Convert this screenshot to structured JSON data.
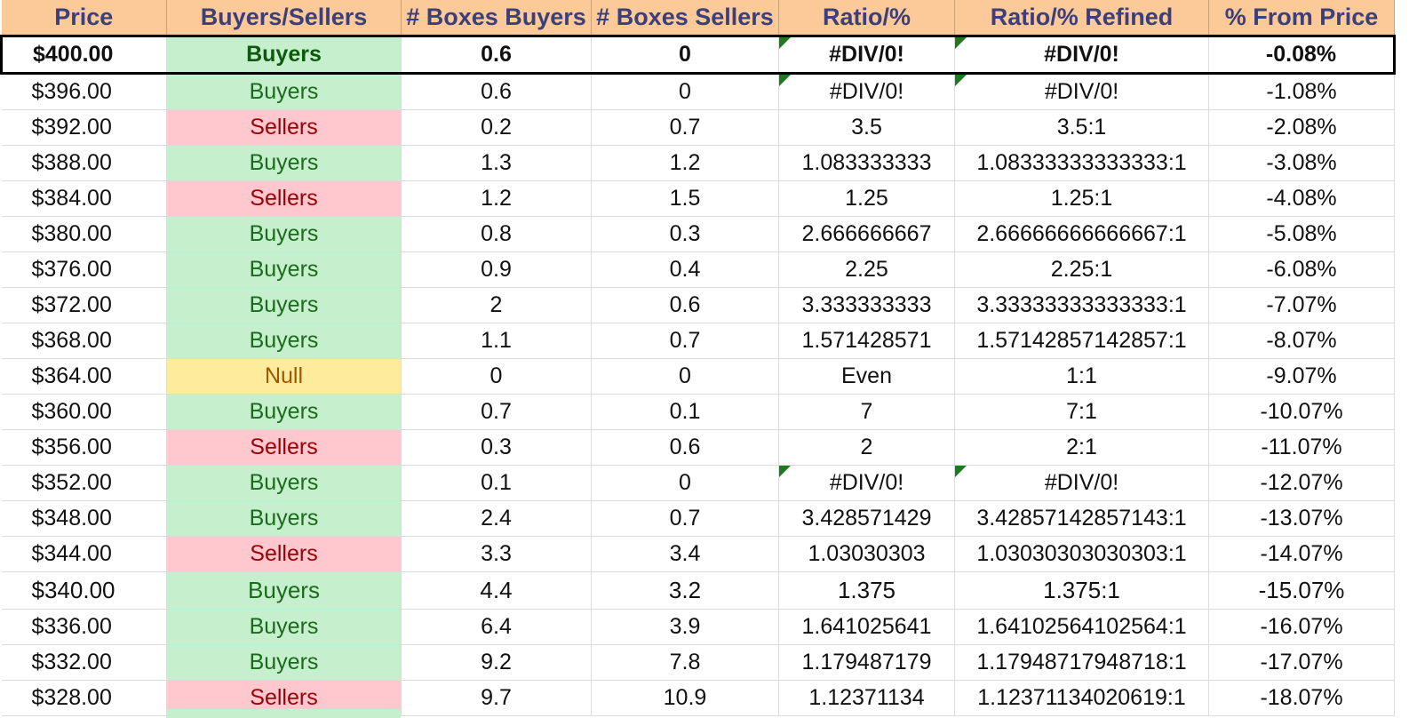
{
  "headers": [
    "Price",
    "Buyers/Sellers",
    "# Boxes Buyers",
    "# Boxes Sellers",
    "Ratio/%",
    "Ratio/% Refined",
    "% From Price"
  ],
  "colors": {
    "header_bg": "#fcc998",
    "header_text": "#3b3f7a",
    "buyers_bg": "#c6efce",
    "buyers_text": "#1a6b1a",
    "sellers_bg": "#ffc7ce",
    "sellers_text": "#9c0006",
    "null_bg": "#ffeb9c",
    "null_text": "#9c5700",
    "error_flag": "#1e7a1e"
  },
  "rows": [
    {
      "price": "$400.00",
      "side": "Buyers",
      "boxes_buyers": "0.6",
      "boxes_sellers": "0",
      "ratio": "#DIV/0!",
      "ratio_refined": "#DIV/0!",
      "from_price": "-0.08%",
      "current": true,
      "error_flag": true
    },
    {
      "price": "$396.00",
      "side": "Buyers",
      "boxes_buyers": "0.6",
      "boxes_sellers": "0",
      "ratio": "#DIV/0!",
      "ratio_refined": "#DIV/0!",
      "from_price": "-1.08%",
      "error_flag": true
    },
    {
      "price": "$392.00",
      "side": "Sellers",
      "boxes_buyers": "0.2",
      "boxes_sellers": "0.7",
      "ratio": "3.5",
      "ratio_refined": "3.5:1",
      "from_price": "-2.08%"
    },
    {
      "price": "$388.00",
      "side": "Buyers",
      "boxes_buyers": "1.3",
      "boxes_sellers": "1.2",
      "ratio": "1.083333333",
      "ratio_refined": "1.08333333333333:1",
      "from_price": "-3.08%"
    },
    {
      "price": "$384.00",
      "side": "Sellers",
      "boxes_buyers": "1.2",
      "boxes_sellers": "1.5",
      "ratio": "1.25",
      "ratio_refined": "1.25:1",
      "from_price": "-4.08%"
    },
    {
      "price": "$380.00",
      "side": "Buyers",
      "boxes_buyers": "0.8",
      "boxes_sellers": "0.3",
      "ratio": "2.666666667",
      "ratio_refined": "2.66666666666667:1",
      "from_price": "-5.08%"
    },
    {
      "price": "$376.00",
      "side": "Buyers",
      "boxes_buyers": "0.9",
      "boxes_sellers": "0.4",
      "ratio": "2.25",
      "ratio_refined": "2.25:1",
      "from_price": "-6.08%"
    },
    {
      "price": "$372.00",
      "side": "Buyers",
      "boxes_buyers": "2",
      "boxes_sellers": "0.6",
      "ratio": "3.333333333",
      "ratio_refined": "3.33333333333333:1",
      "from_price": "-7.07%"
    },
    {
      "price": "$368.00",
      "side": "Buyers",
      "boxes_buyers": "1.1",
      "boxes_sellers": "0.7",
      "ratio": "1.571428571",
      "ratio_refined": "1.57142857142857:1",
      "from_price": "-8.07%"
    },
    {
      "price": "$364.00",
      "side": "Null",
      "boxes_buyers": "0",
      "boxes_sellers": "0",
      "ratio": "Even",
      "ratio_refined": "1:1",
      "from_price": "-9.07%"
    },
    {
      "price": "$360.00",
      "side": "Buyers",
      "boxes_buyers": "0.7",
      "boxes_sellers": "0.1",
      "ratio": "7",
      "ratio_refined": "7:1",
      "from_price": "-10.07%"
    },
    {
      "price": "$356.00",
      "side": "Sellers",
      "boxes_buyers": "0.3",
      "boxes_sellers": "0.6",
      "ratio": "2",
      "ratio_refined": "2:1",
      "from_price": "-11.07%"
    },
    {
      "price": "$352.00",
      "side": "Buyers",
      "boxes_buyers": "0.1",
      "boxes_sellers": "0",
      "ratio": "#DIV/0!",
      "ratio_refined": "#DIV/0!",
      "from_price": "-12.07%",
      "error_flag": true
    },
    {
      "price": "$348.00",
      "side": "Buyers",
      "boxes_buyers": "2.4",
      "boxes_sellers": "0.7",
      "ratio": "3.428571429",
      "ratio_refined": "3.42857142857143:1",
      "from_price": "-13.07%"
    },
    {
      "price": "$344.00",
      "side": "Sellers",
      "boxes_buyers": "3.3",
      "boxes_sellers": "3.4",
      "ratio": "1.03030303",
      "ratio_refined": "1.03030303030303:1",
      "from_price": "-14.07%"
    },
    {
      "price": "$340.00",
      "side": "Buyers",
      "boxes_buyers": "4.4",
      "boxes_sellers": "3.2",
      "ratio": "1.375",
      "ratio_refined": "1.375:1",
      "from_price": "-15.07%",
      "tall": true
    },
    {
      "price": "$336.00",
      "side": "Buyers",
      "boxes_buyers": "6.4",
      "boxes_sellers": "3.9",
      "ratio": "1.641025641",
      "ratio_refined": "1.64102564102564:1",
      "from_price": "-16.07%"
    },
    {
      "price": "$332.00",
      "side": "Buyers",
      "boxes_buyers": "9.2",
      "boxes_sellers": "7.8",
      "ratio": "1.179487179",
      "ratio_refined": "1.17948717948718:1",
      "from_price": "-17.07%"
    },
    {
      "price": "$328.00",
      "side": "Sellers",
      "boxes_buyers": "9.7",
      "boxes_sellers": "10.9",
      "ratio": "1.12371134",
      "ratio_refined": "1.12371134020619:1",
      "from_price": "-18.07%"
    }
  ]
}
